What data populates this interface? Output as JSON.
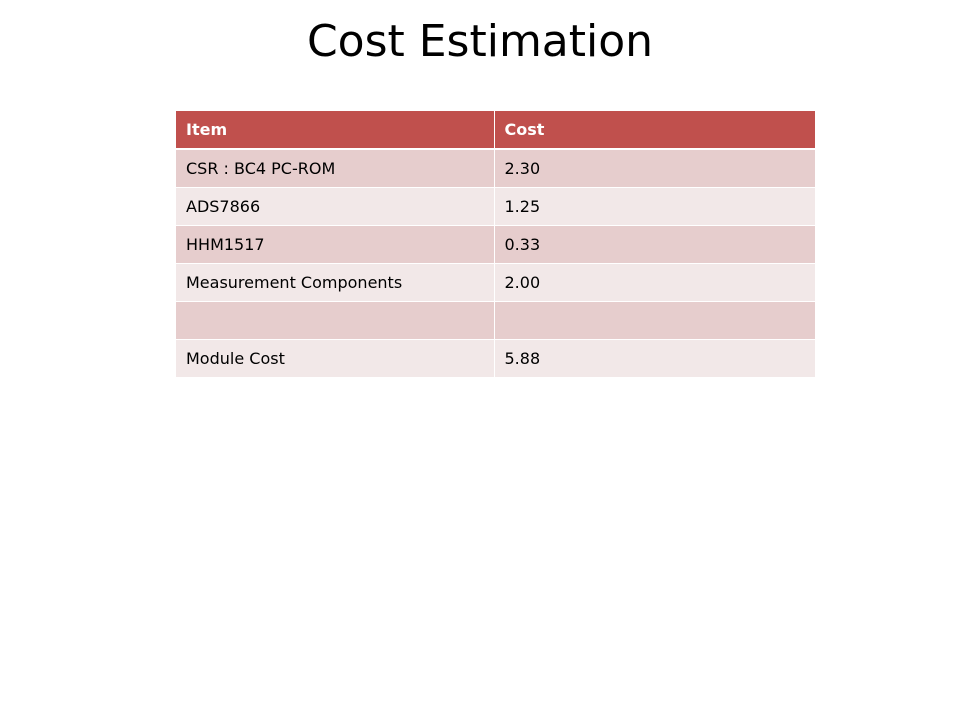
{
  "title": "Cost Estimation",
  "table": {
    "headers": {
      "item": "Item",
      "cost": "Cost"
    },
    "rows": [
      {
        "item": "CSR : BC4 PC-ROM",
        "cost": "2.30"
      },
      {
        "item": "ADS7866",
        "cost": "1.25"
      },
      {
        "item": "HHM1517",
        "cost": "0.33"
      },
      {
        "item": "Measurement Components",
        "cost": "2.00"
      },
      {
        "item": "",
        "cost": ""
      },
      {
        "item": "Module Cost",
        "cost": "5.88"
      }
    ]
  }
}
